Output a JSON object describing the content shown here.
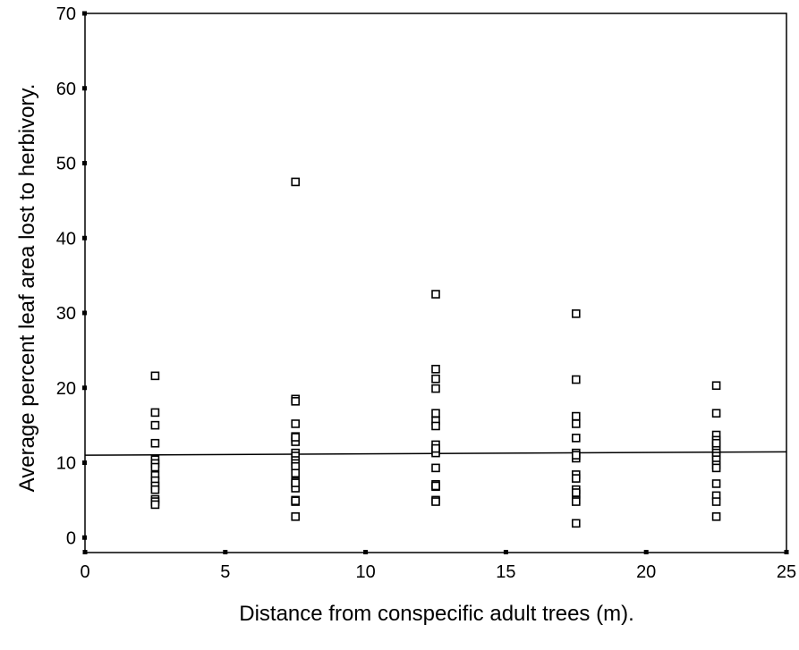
{
  "chart_data": {
    "type": "scatter",
    "title": "",
    "xlabel": "Distance from conspecific adult trees (m).",
    "ylabel": "Average percent leaf area lost to herbivory.",
    "xlim": [
      0,
      25
    ],
    "ylim": [
      -2,
      70
    ],
    "xticks": [
      0,
      5,
      10,
      15,
      20,
      25
    ],
    "yticks": [
      0,
      10,
      20,
      30,
      40,
      50,
      60,
      70
    ],
    "grid": false,
    "legend": "none",
    "marker": "open-square",
    "colors": {
      "marker": "#000000",
      "line": "#000000",
      "axis": "#000000"
    },
    "series": [
      {
        "x": [
          2.5,
          2.5,
          2.5,
          2.5,
          2.5,
          2.5,
          2.5,
          2.5,
          2.5,
          2.5,
          2.5,
          2.5,
          2.5,
          2.5
        ],
        "y": [
          21.6,
          16.7,
          15.0,
          12.6,
          10.4,
          9.9,
          9.4,
          8.3,
          7.6,
          6.9,
          6.4,
          5.1,
          4.8,
          4.4
        ]
      },
      {
        "x": [
          7.5,
          7.5,
          7.5,
          7.5,
          7.5,
          7.5,
          7.5,
          7.5,
          7.5,
          7.5,
          7.5,
          7.5,
          7.5,
          7.5,
          7.5,
          7.5,
          7.5,
          7.5,
          7.5,
          7.5,
          7.5,
          7.5
        ],
        "y": [
          47.5,
          18.5,
          18.2,
          15.2,
          13.5,
          13.2,
          12.8,
          11.3,
          10.9,
          10.3,
          9.9,
          9.5,
          8.6,
          7.5,
          7.1,
          6.6,
          5.0,
          4.8,
          2.8,
          13.4,
          4.9,
          7.3
        ]
      },
      {
        "x": [
          12.5,
          12.5,
          12.5,
          12.5,
          12.5,
          12.5,
          12.5,
          12.5,
          12.5,
          12.5,
          12.5,
          12.5,
          12.5,
          12.5,
          12.5,
          12.5,
          12.5
        ],
        "y": [
          32.5,
          22.5,
          21.2,
          19.9,
          16.6,
          15.6,
          14.9,
          12.4,
          11.6,
          11.3,
          9.3,
          7.1,
          6.8,
          5.0,
          4.8,
          6.9,
          11.9
        ]
      },
      {
        "x": [
          17.5,
          17.5,
          17.5,
          17.5,
          17.5,
          17.5,
          17.5,
          17.5,
          17.5,
          17.5,
          17.5,
          17.5,
          17.5,
          17.5,
          17.5,
          17.5,
          17.5
        ],
        "y": [
          29.9,
          21.1,
          16.2,
          15.2,
          13.3,
          11.3,
          10.9,
          10.6,
          8.4,
          7.9,
          6.4,
          5.8,
          5.0,
          4.8,
          1.9,
          11.0,
          6.0
        ]
      },
      {
        "x": [
          22.5,
          22.5,
          22.5,
          22.5,
          22.5,
          22.5,
          22.5,
          22.5,
          22.5,
          22.5,
          22.5,
          22.5,
          22.5,
          22.5,
          22.5,
          22.5
        ],
        "y": [
          20.3,
          16.6,
          13.7,
          13.0,
          12.3,
          11.8,
          11.3,
          10.9,
          10.4,
          9.7,
          9.3,
          7.2,
          5.6,
          4.8,
          2.8,
          12.6
        ]
      }
    ],
    "fit_line": {
      "x": [
        0,
        25
      ],
      "y": [
        11.0,
        11.45
      ]
    }
  }
}
